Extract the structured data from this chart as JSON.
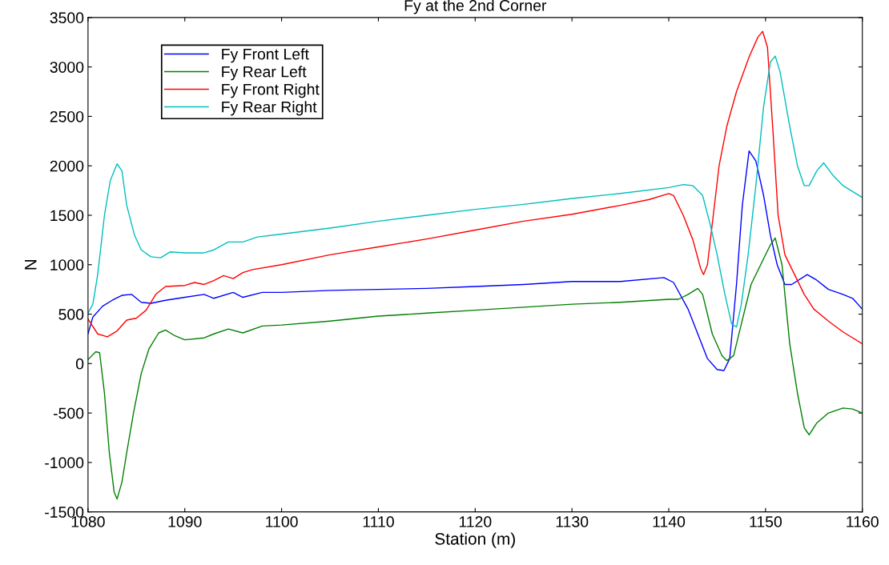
{
  "chart_data": {
    "type": "line",
    "title": "Fy at the 2nd Corner",
    "xlabel": "Station (m)",
    "ylabel": "N",
    "xlim": [
      1080,
      1160
    ],
    "xticks": [
      1080,
      1090,
      1100,
      1110,
      1120,
      1130,
      1140,
      1150,
      1160
    ],
    "ylim": [
      -1500,
      3500
    ],
    "yticks": [
      -1500,
      -1000,
      -500,
      0,
      500,
      1000,
      1500,
      2000,
      2500,
      3000,
      3500
    ],
    "grid": false,
    "legend": "top left",
    "marker": "none",
    "line_style": "solid",
    "series": [
      {
        "name": "Fy Front Left",
        "color": "#0000ff",
        "x": [
          1080,
          1080.5,
          1081.5,
          1082.5,
          1083.5,
          1084.5,
          1085.5,
          1086.5,
          1088,
          1090,
          1092,
          1093,
          1095,
          1096,
          1098,
          1100,
          1105,
          1110,
          1115,
          1120,
          1125,
          1130,
          1135,
          1139.5,
          1140.5,
          1142,
          1143,
          1144,
          1145,
          1145.7,
          1146.3,
          1147,
          1147.6,
          1148.3,
          1149,
          1149.8,
          1150.5,
          1151.2,
          1152,
          1152.7,
          1154.3,
          1155.2,
          1156.5,
          1158,
          1159,
          1160
        ],
        "values": [
          300,
          470,
          580,
          640,
          690,
          700,
          620,
          610,
          640,
          670,
          700,
          660,
          720,
          670,
          720,
          720,
          740,
          750,
          760,
          780,
          800,
          830,
          830,
          870,
          820,
          550,
          300,
          50,
          -60,
          -70,
          50,
          800,
          1600,
          2150,
          2050,
          1700,
          1300,
          1000,
          800,
          800,
          900,
          850,
          750,
          700,
          660,
          550
        ]
      },
      {
        "name": "Fy Rear Left",
        "color": "#008000",
        "x": [
          1080,
          1080.8,
          1081.2,
          1081.7,
          1082.2,
          1082.7,
          1083,
          1083.5,
          1084,
          1084.7,
          1085.5,
          1086.3,
          1087.3,
          1088,
          1089,
          1090,
          1092,
          1093,
          1094.5,
          1096,
          1098,
          1100,
          1105,
          1110,
          1115,
          1120,
          1125,
          1130,
          1135,
          1140,
          1141,
          1142,
          1143,
          1143.5,
          1144.5,
          1145.5,
          1146,
          1146.7,
          1147.5,
          1148.5,
          1149.5,
          1150.5,
          1151,
          1151.7,
          1152.5,
          1153.3,
          1154,
          1154.5,
          1155.3,
          1156.5,
          1158,
          1159,
          1160
        ],
        "values": [
          40,
          120,
          110,
          -300,
          -900,
          -1300,
          -1370,
          -1200,
          -900,
          -500,
          -100,
          150,
          310,
          340,
          280,
          240,
          260,
          300,
          350,
          310,
          380,
          390,
          430,
          480,
          510,
          540,
          570,
          600,
          620,
          650,
          650,
          700,
          760,
          700,
          300,
          80,
          30,
          80,
          400,
          800,
          1000,
          1200,
          1270,
          1000,
          200,
          -300,
          -650,
          -720,
          -600,
          -500,
          -450,
          -460,
          -500
        ]
      },
      {
        "name": "Fy Front Right",
        "color": "#ff0000",
        "x": [
          1080,
          1081,
          1082,
          1083,
          1084,
          1085,
          1086,
          1087,
          1088,
          1090,
          1091,
          1092,
          1093,
          1094,
          1095,
          1096,
          1097,
          1100,
          1105,
          1110,
          1115,
          1120,
          1125,
          1130,
          1135,
          1138,
          1140,
          1140.5,
          1141.5,
          1142.5,
          1143.3,
          1143.6,
          1144,
          1144.6,
          1145.2,
          1146,
          1147,
          1148.3,
          1149.2,
          1149.7,
          1150.2,
          1150.8,
          1151.3,
          1152,
          1153,
          1154,
          1155,
          1156.5,
          1158,
          1160
        ],
        "values": [
          450,
          300,
          270,
          330,
          440,
          460,
          540,
          700,
          780,
          790,
          820,
          800,
          840,
          890,
          860,
          920,
          950,
          1000,
          1100,
          1180,
          1260,
          1350,
          1440,
          1510,
          1600,
          1660,
          1720,
          1700,
          1500,
          1250,
          960,
          900,
          1000,
          1500,
          2000,
          2400,
          2750,
          3100,
          3300,
          3360,
          3200,
          2300,
          1500,
          1100,
          900,
          700,
          550,
          430,
          320,
          200
        ]
      },
      {
        "name": "Fy Rear Right",
        "color": "#00bfbf",
        "x": [
          1080,
          1080.5,
          1081,
          1081.7,
          1082.3,
          1083,
          1083.5,
          1084,
          1084.8,
          1085.5,
          1086.5,
          1087.5,
          1088.5,
          1090,
          1092,
          1093,
          1094.5,
          1096,
          1097.5,
          1100,
          1105,
          1110,
          1115,
          1120,
          1125,
          1130,
          1135,
          1140,
          1141.5,
          1142.5,
          1143.5,
          1144.3,
          1145,
          1145.8,
          1146.5,
          1147,
          1147.5,
          1148.2,
          1149,
          1149.8,
          1150.5,
          1151,
          1151.5,
          1152.5,
          1153.3,
          1154,
          1154.5,
          1155.3,
          1156,
          1157,
          1158,
          1159,
          1160
        ],
        "values": [
          510,
          600,
          900,
          1500,
          1850,
          2020,
          1950,
          1600,
          1300,
          1150,
          1080,
          1070,
          1130,
          1120,
          1120,
          1150,
          1230,
          1230,
          1280,
          1310,
          1370,
          1440,
          1500,
          1560,
          1610,
          1670,
          1720,
          1780,
          1810,
          1800,
          1700,
          1400,
          1100,
          700,
          400,
          370,
          600,
          1100,
          1800,
          2600,
          3050,
          3110,
          2950,
          2400,
          2000,
          1800,
          1800,
          1950,
          2030,
          1900,
          1800,
          1740,
          1680
        ]
      }
    ]
  }
}
